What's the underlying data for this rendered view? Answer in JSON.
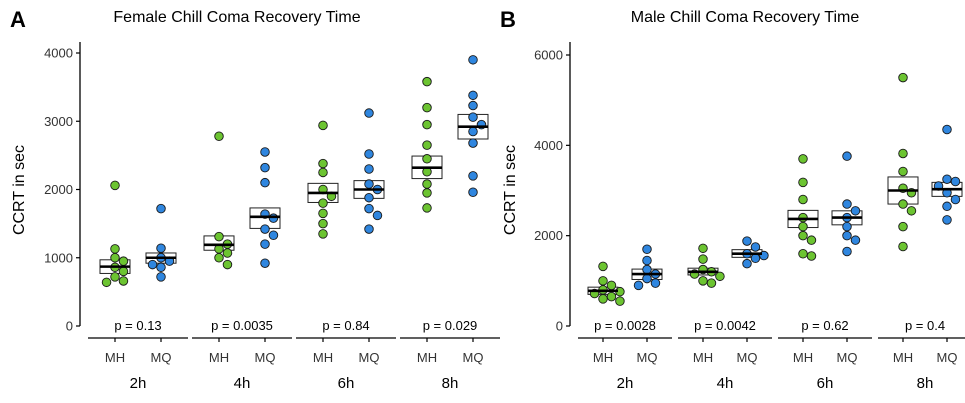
{
  "chart_data": [
    {
      "panel": "A",
      "type": "scatter",
      "title": "Female Chill Coma Recovery Time",
      "ylabel": "CCRT in sec",
      "ylim": [
        0,
        4000
      ],
      "yticks": [
        0,
        1000,
        2000,
        3000,
        4000
      ],
      "group_labels": [
        "MH",
        "MQ"
      ],
      "colors": {
        "MH": "#6cc431",
        "MQ": "#2f86df"
      },
      "categories": [
        "2h",
        "4h",
        "6h",
        "8h"
      ],
      "pvalues": [
        "p = 0.13",
        "p = 0.0035",
        "p = 0.84",
        "p = 0.029"
      ],
      "series": [
        {
          "name": "MH",
          "values": [
            [
              2060,
              1130,
              1000,
              950,
              860,
              800,
              720,
              660,
              640
            ],
            [
              2780,
              1310,
              1200,
              1130,
              1070,
              1000,
              900
            ],
            [
              2940,
              2380,
              2250,
              2000,
              1900,
              1800,
              1650,
              1500,
              1350
            ],
            [
              3580,
              3200,
              2950,
              2650,
              2450,
              2260,
              2080,
              1950,
              1730
            ]
          ]
        },
        {
          "name": "MQ",
          "values": [
            [
              1720,
              1140,
              1000,
              950,
              900,
              860,
              720
            ],
            [
              2550,
              2320,
              2100,
              1640,
              1580,
              1420,
              1330,
              1200,
              920
            ],
            [
              3120,
              2520,
              2300,
              2080,
              2000,
              1880,
              1720,
              1620,
              1420
            ],
            [
              3900,
              3380,
              3230,
              3060,
              2950,
              2850,
              2680,
              2200,
              1960
            ]
          ]
        }
      ],
      "summary": {
        "MH": [
          {
            "mean": 870,
            "lo": 770,
            "hi": 970
          },
          {
            "mean": 1190,
            "lo": 1110,
            "hi": 1320
          },
          {
            "mean": 1950,
            "lo": 1810,
            "hi": 2090
          },
          {
            "mean": 2320,
            "lo": 2160,
            "hi": 2490
          }
        ],
        "MQ": [
          {
            "mean": 1000,
            "lo": 920,
            "hi": 1070
          },
          {
            "mean": 1600,
            "lo": 1430,
            "hi": 1730
          },
          {
            "mean": 2000,
            "lo": 1870,
            "hi": 2130
          },
          {
            "mean": 2920,
            "lo": 2740,
            "hi": 3100
          }
        ]
      }
    },
    {
      "panel": "B",
      "type": "scatter",
      "title": "Male Chill Coma Recovery Time",
      "ylabel": "CCRT in sec",
      "ylim": [
        0,
        6000
      ],
      "yticks": [
        0,
        2000,
        4000,
        6000
      ],
      "group_labels": [
        "MH",
        "MQ"
      ],
      "colors": {
        "MH": "#6cc431",
        "MQ": "#2f86df"
      },
      "categories": [
        "2h",
        "4h",
        "6h",
        "8h"
      ],
      "pvalues": [
        "p = 0.0028",
        "p = 0.0042",
        "p = 0.62",
        "p = 0.4"
      ],
      "series": [
        {
          "name": "MH",
          "values": [
            [
              1320,
              1000,
              900,
              800,
              760,
              720,
              650,
              600,
              550
            ],
            [
              1720,
              1480,
              1250,
              1200,
              1150,
              1100,
              1000,
              950
            ],
            [
              3700,
              3180,
              2800,
              2400,
              2200,
              2000,
              1900,
              1600,
              1550
            ],
            [
              5500,
              3820,
              3420,
              3050,
              2950,
              2700,
              2550,
              2200,
              1760
            ]
          ]
        },
        {
          "name": "MQ",
          "values": [
            [
              1700,
              1450,
              1250,
              1150,
              1050,
              950,
              900
            ],
            [
              1880,
              1750,
              1600,
              1560,
              1500,
              1380
            ],
            [
              3760,
              2700,
              2550,
              2400,
              2200,
              2000,
              1900,
              1650
            ],
            [
              4350,
              3250,
              3200,
              3100,
              2950,
              2800,
              2650,
              2350
            ]
          ]
        }
      ],
      "summary": {
        "MH": [
          {
            "mean": 780,
            "lo": 700,
            "hi": 860
          },
          {
            "mean": 1200,
            "lo": 1130,
            "hi": 1280
          },
          {
            "mean": 2370,
            "lo": 2180,
            "hi": 2560
          },
          {
            "mean": 3000,
            "lo": 2700,
            "hi": 3300
          }
        ],
        "MQ": [
          {
            "mean": 1150,
            "lo": 1030,
            "hi": 1260
          },
          {
            "mean": 1600,
            "lo": 1520,
            "hi": 1690
          },
          {
            "mean": 2400,
            "lo": 2240,
            "hi": 2550
          },
          {
            "mean": 3030,
            "lo": 2870,
            "hi": 3180
          }
        ]
      }
    }
  ]
}
